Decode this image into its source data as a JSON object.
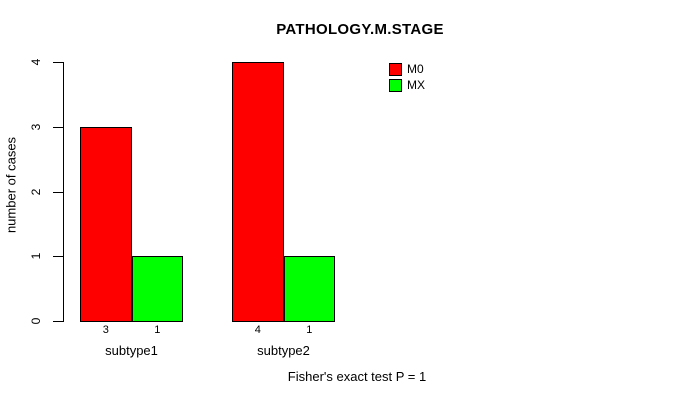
{
  "page": {
    "background": "#ffffff"
  },
  "title": "PATHOLOGY.M.STAGE",
  "footer_annotation": "Fisher's exact test P = 1",
  "legend": {
    "items": [
      {
        "label": "M0",
        "color": "#ff0000"
      },
      {
        "label": "MX",
        "color": "#00ff00"
      }
    ]
  },
  "chart_data": {
    "type": "bar",
    "title": "PATHOLOGY.M.STAGE",
    "categories": [
      "subtype1",
      "subtype2"
    ],
    "series": [
      {
        "name": "M0",
        "color": "#ff0000",
        "values": [
          3,
          4
        ]
      },
      {
        "name": "MX",
        "color": "#00ff00",
        "values": [
          1,
          1
        ]
      }
    ],
    "value_labels": [
      [
        "3",
        "1"
      ],
      [
        "4",
        "1"
      ]
    ],
    "xlabel": "",
    "ylabel": "number of cases",
    "ylim": [
      0,
      4
    ],
    "yticks": [
      0,
      1,
      2,
      3,
      4
    ],
    "grid": false,
    "legend_position": "top-right-inside",
    "annotation": "Fisher's exact test P = 1"
  }
}
